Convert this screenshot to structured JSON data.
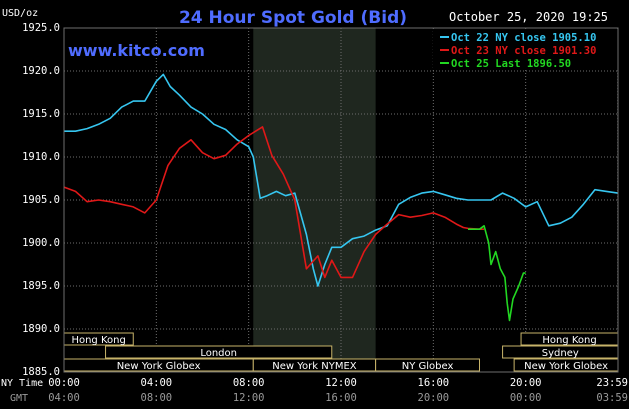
{
  "header": {
    "title": "24 Hour Spot Gold (Bid)",
    "datetime": "October 25, 2020 19:25",
    "website": "www.kitco.com",
    "unit": "USD/oz"
  },
  "colors": {
    "background": "#000000",
    "plot_background": "#000000",
    "grid": "#6e6e6e",
    "nymex_band": "#1f271f",
    "title": "#4f6cff",
    "website": "#4f6cff",
    "market_bar_fill": "#000000",
    "market_bar_stroke": "#c8b46a",
    "market_text": "#ffffff",
    "axis_text": "#ffffff",
    "gmt_text": "#9a9a9a"
  },
  "chart_data": {
    "type": "line",
    "ylabel": "USD/oz",
    "ylim": [
      1885,
      1925
    ],
    "y_ticks": [
      "1925.0",
      "1920.0",
      "1915.0",
      "1910.0",
      "1905.0",
      "1900.0",
      "1895.0",
      "1890.0",
      "1885.0"
    ],
    "xlim": [
      0,
      24
    ],
    "x_ticks_ny": [
      "00:00",
      "04:00",
      "08:00",
      "12:00",
      "16:00",
      "20:00",
      "23:59"
    ],
    "x_ticks_gmt": [
      "04:00",
      "08:00",
      "12:00",
      "16:00",
      "20:00",
      "00:00",
      "03:59"
    ],
    "x_axis_labels": {
      "ny": "NY Time",
      "gmt": "GMT"
    },
    "grid": true,
    "legend_position": "top-right",
    "nymex_shade": [
      8.2,
      13.5
    ],
    "series": [
      {
        "name": "Oct 22 NY close 1905.10",
        "color": "#36c6f0",
        "x": [
          0,
          0.5,
          1.0,
          1.5,
          2.0,
          2.5,
          3.0,
          3.5,
          4.0,
          4.3,
          4.6,
          5.0,
          5.5,
          6.0,
          6.5,
          7.0,
          7.5,
          8.0,
          8.2,
          8.5,
          8.8,
          9.2,
          9.6,
          10.0,
          10.5,
          10.8,
          11.0,
          11.3,
          11.6,
          12.0,
          12.5,
          13.0,
          13.5,
          14.0,
          14.5,
          15.0,
          15.5,
          16.0,
          16.5,
          17.0,
          17.5,
          18.0,
          18.5,
          19.0,
          19.5,
          20.0,
          20.5,
          21.0,
          21.5,
          22.0,
          22.5,
          23.0,
          23.5,
          23.99
        ],
        "y": [
          1913.0,
          1913.0,
          1913.3,
          1913.8,
          1914.5,
          1915.8,
          1916.5,
          1916.5,
          1918.8,
          1919.6,
          1918.2,
          1917.2,
          1915.8,
          1915.0,
          1913.8,
          1913.2,
          1912.0,
          1911.2,
          1910.0,
          1905.2,
          1905.5,
          1906.0,
          1905.5,
          1905.8,
          1901.0,
          1897.0,
          1895.0,
          1897.5,
          1899.5,
          1899.5,
          1900.5,
          1900.8,
          1901.5,
          1902.0,
          1904.5,
          1905.3,
          1905.8,
          1906.0,
          1905.6,
          1905.2,
          1905.0,
          1905.0,
          1905.0,
          1905.8,
          1905.2,
          1904.2,
          1904.8,
          1902.0,
          1902.3,
          1903.0,
          1904.5,
          1906.2,
          1906.0,
          1905.8
        ]
      },
      {
        "name": "Oct 23 NY close 1901.30",
        "color": "#e01818",
        "x": [
          0,
          0.5,
          1.0,
          1.5,
          2.0,
          2.5,
          3.0,
          3.5,
          4.0,
          4.5,
          5.0,
          5.5,
          6.0,
          6.5,
          7.0,
          7.5,
          8.0,
          8.3,
          8.6,
          9.0,
          9.5,
          10.0,
          10.5,
          11.0,
          11.3,
          11.6,
          12.0,
          12.5,
          13.0,
          13.5,
          14.0,
          14.5,
          15.0,
          15.5,
          16.0,
          16.5,
          17.0,
          17.3,
          17.5,
          18.0,
          18.2
        ],
        "y": [
          1906.5,
          1906.0,
          1904.8,
          1905.0,
          1904.8,
          1904.5,
          1904.2,
          1903.5,
          1905.0,
          1909.0,
          1911.0,
          1912.0,
          1910.5,
          1909.8,
          1910.2,
          1911.5,
          1912.5,
          1913.0,
          1913.5,
          1910.2,
          1908.0,
          1905.0,
          1897.0,
          1898.5,
          1896.0,
          1898.0,
          1896.0,
          1896.0,
          1899.0,
          1901.0,
          1902.2,
          1903.3,
          1903.0,
          1903.2,
          1903.5,
          1903.0,
          1902.2,
          1901.8,
          1901.7,
          1901.6,
          1901.6
        ]
      },
      {
        "name": "Oct 25 Last 1896.50",
        "color": "#22d822",
        "x": [
          17.5,
          18.0,
          18.2,
          18.3,
          18.4,
          18.5,
          18.7,
          18.9,
          19.1,
          19.2,
          19.3,
          19.45,
          19.7,
          19.9,
          20.0
        ],
        "y": [
          1901.6,
          1901.6,
          1902.0,
          1901.0,
          1900.0,
          1897.5,
          1899.0,
          1897.0,
          1896.0,
          1893.0,
          1891.0,
          1893.5,
          1895.0,
          1896.5,
          1896.5
        ]
      }
    ]
  },
  "markets": [
    {
      "name": "Hong Kong",
      "row": 0,
      "start": 0,
      "end": 3.0
    },
    {
      "name": "London",
      "row": 1,
      "start": 1.8,
      "end": 11.6
    },
    {
      "name": "New York Globex",
      "row": 2,
      "start": 0,
      "end": 8.2
    },
    {
      "name": "New York NYMEX",
      "row": 2,
      "start": 8.2,
      "end": 13.5
    },
    {
      "name": "NY Globex",
      "row": 2,
      "start": 13.5,
      "end": 18.0
    },
    {
      "name": "Hong Kong",
      "row": 0,
      "start": 19.8,
      "end": 24
    },
    {
      "name": "Sydney",
      "row": 1,
      "start": 19.0,
      "end": 24
    },
    {
      "name": "New York Globex",
      "row": 2,
      "start": 19.5,
      "end": 24
    }
  ]
}
